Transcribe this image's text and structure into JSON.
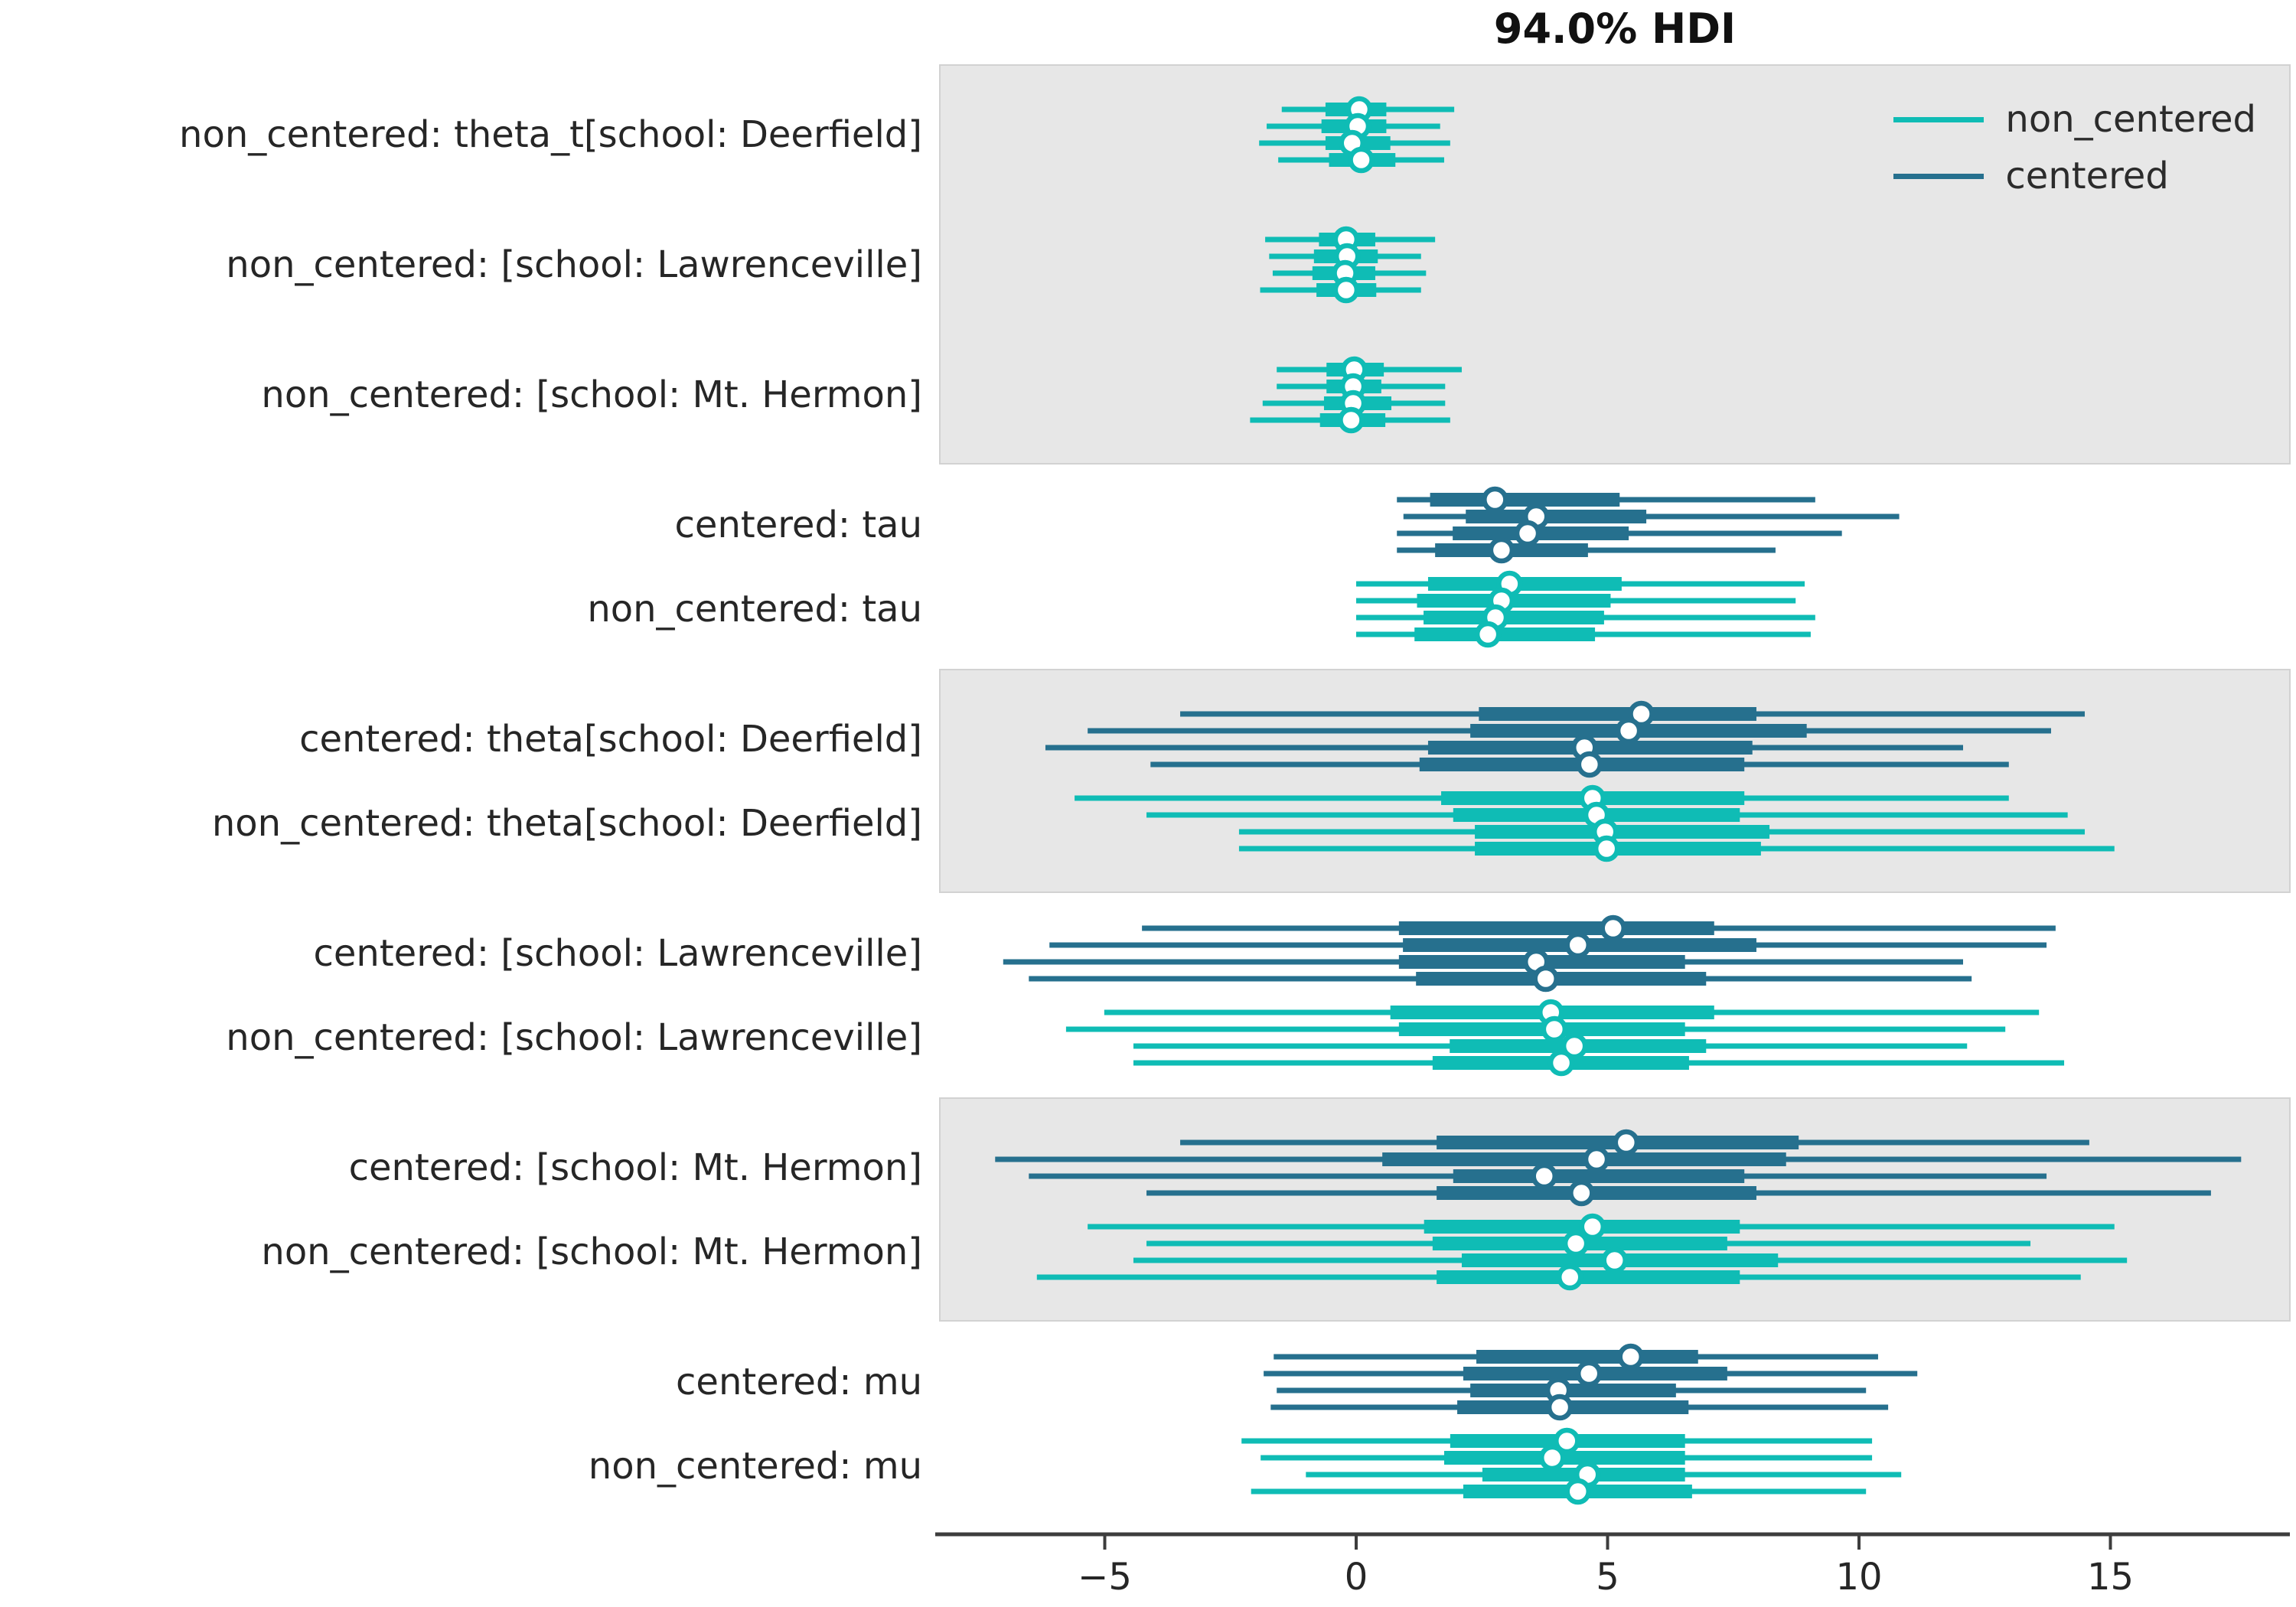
{
  "chart_data": {
    "type": "forest",
    "title": "94.0% HDI",
    "hdi_probability": "94.0%",
    "x_ticks": [
      -5,
      0,
      5,
      10,
      15
    ],
    "x_range": [
      -8.3,
      18.6
    ],
    "grid": false,
    "legend_position": "upper right",
    "legend": [
      {
        "label": "non_centered",
        "color": "#0fbcb5"
      },
      {
        "label": "centered",
        "color": "#26708e"
      }
    ],
    "colors": {
      "non_centered": "#0fbcb5",
      "centered": "#26708e",
      "band": "#e7e7e7",
      "band_edge": "#d2d2d2",
      "axis": "#3d3d3d",
      "text": "#262626"
    },
    "chain_value_columns": [
      "hdi_low",
      "quartile_low",
      "median",
      "quartile_high",
      "hdi_high"
    ],
    "rows": [
      {
        "label": "non_centered: theta_t[school: Deerfield]",
        "model": "non_centered",
        "shaded": true,
        "chains": [
          [
            -1.48,
            -0.61,
            0.06,
            0.6,
            1.95
          ],
          [
            -1.78,
            -0.69,
            0.03,
            0.6,
            1.67
          ],
          [
            -1.93,
            -0.61,
            -0.08,
            0.68,
            1.87
          ],
          [
            -1.55,
            -0.54,
            0.1,
            0.78,
            1.75
          ]
        ]
      },
      {
        "label": "non_centered: [school: Lawrenceville]",
        "model": "non_centered",
        "shaded": true,
        "chains": [
          [
            -1.81,
            -0.74,
            -0.2,
            0.38,
            1.57
          ],
          [
            -1.73,
            -0.84,
            -0.18,
            0.43,
            1.29
          ],
          [
            -1.66,
            -0.87,
            -0.22,
            0.38,
            1.39
          ],
          [
            -1.91,
            -0.79,
            -0.2,
            0.4,
            1.29
          ]
        ]
      },
      {
        "label": "non_centered: [school: Mt. Hermon]",
        "model": "non_centered",
        "shaded": true,
        "chains": [
          [
            -1.58,
            -0.59,
            -0.04,
            0.55,
            2.1
          ],
          [
            -1.58,
            -0.59,
            -0.06,
            0.5,
            1.77
          ],
          [
            -1.86,
            -0.64,
            -0.06,
            0.7,
            1.77
          ],
          [
            -2.11,
            -0.72,
            -0.1,
            0.58,
            1.87
          ]
        ]
      },
      {
        "label": "centered: tau",
        "model": "centered",
        "shaded": false,
        "chains": [
          [
            0.81,
            1.47,
            2.76,
            5.24,
            9.13
          ],
          [
            0.94,
            2.18,
            3.58,
            5.77,
            10.8
          ],
          [
            0.81,
            1.92,
            3.41,
            5.42,
            9.66
          ],
          [
            0.81,
            1.57,
            2.89,
            4.61,
            8.34
          ]
        ]
      },
      {
        "label": "non_centered: tau",
        "model": "non_centered",
        "shaded": false,
        "chains": [
          [
            0.0,
            1.43,
            3.05,
            5.28,
            8.92
          ],
          [
            0.0,
            1.21,
            2.89,
            5.06,
            8.74
          ],
          [
            0.0,
            1.34,
            2.77,
            4.93,
            9.13
          ],
          [
            0.0,
            1.16,
            2.62,
            4.75,
            9.04
          ]
        ]
      },
      {
        "label": "centered: theta[school: Deerfield]",
        "model": "centered",
        "shaded": true,
        "chains": [
          [
            -3.5,
            2.44,
            5.67,
            7.96,
            14.49
          ],
          [
            -5.34,
            2.27,
            5.42,
            8.96,
            13.82
          ],
          [
            -6.18,
            1.43,
            4.54,
            7.88,
            12.07
          ],
          [
            -4.09,
            1.26,
            4.64,
            7.72,
            12.98
          ]
        ]
      },
      {
        "label": "non_centered: theta[school: Deerfield]",
        "model": "non_centered",
        "shaded": true,
        "chains": [
          [
            -5.6,
            1.69,
            4.7,
            7.72,
            12.98
          ],
          [
            -4.17,
            1.93,
            4.78,
            7.63,
            14.15
          ],
          [
            -2.33,
            2.36,
            4.95,
            8.22,
            14.49
          ],
          [
            -2.33,
            2.36,
            4.98,
            8.05,
            15.08
          ]
        ]
      },
      {
        "label": "centered: [school: Lawrenceville]",
        "model": "centered",
        "shaded": false,
        "chains": [
          [
            -4.26,
            0.85,
            5.11,
            7.12,
            13.91
          ],
          [
            -6.1,
            0.93,
            4.41,
            7.96,
            13.73
          ],
          [
            -7.02,
            0.85,
            3.58,
            6.54,
            12.07
          ],
          [
            -6.51,
            1.19,
            3.77,
            6.96,
            12.24
          ]
        ]
      },
      {
        "label": "non_centered: [school: Lawrenceville]",
        "model": "non_centered",
        "shaded": false,
        "chains": [
          [
            -5.01,
            0.68,
            3.87,
            7.12,
            13.58
          ],
          [
            -5.77,
            0.85,
            3.94,
            6.54,
            12.91
          ],
          [
            -4.43,
            1.86,
            4.34,
            6.96,
            12.15
          ],
          [
            -4.43,
            1.52,
            4.08,
            6.62,
            14.08
          ]
        ]
      },
      {
        "label": "centered: [school: Mt. Hermon]",
        "model": "centered",
        "shaded": true,
        "chains": [
          [
            -3.5,
            1.6,
            5.37,
            8.8,
            14.58
          ],
          [
            -7.18,
            0.52,
            4.78,
            8.55,
            17.6
          ],
          [
            -6.51,
            1.93,
            3.74,
            7.72,
            13.73
          ],
          [
            -4.17,
            1.6,
            4.48,
            7.96,
            17.0
          ]
        ]
      },
      {
        "label": "non_centered: [school: Mt. Hermon]",
        "model": "non_centered",
        "shaded": true,
        "chains": [
          [
            -5.34,
            1.35,
            4.7,
            7.63,
            15.08
          ],
          [
            -4.17,
            1.52,
            4.37,
            7.38,
            13.41
          ],
          [
            -4.43,
            2.1,
            5.14,
            8.39,
            15.33
          ],
          [
            -6.35,
            1.6,
            4.25,
            7.63,
            14.41
          ]
        ]
      },
      {
        "label": "centered: mu",
        "model": "centered",
        "shaded": false,
        "chains": [
          [
            -1.64,
            2.39,
            5.46,
            6.8,
            10.38
          ],
          [
            -1.84,
            2.13,
            4.63,
            7.38,
            11.16
          ],
          [
            -1.58,
            2.27,
            4.02,
            6.36,
            10.14
          ],
          [
            -1.7,
            2.01,
            4.05,
            6.61,
            10.58
          ]
        ]
      },
      {
        "label": "non_centered: mu",
        "model": "non_centered",
        "shaded": false,
        "chains": [
          [
            -2.28,
            1.87,
            4.19,
            6.54,
            10.26
          ],
          [
            -1.9,
            1.75,
            3.9,
            6.54,
            10.26
          ],
          [
            -1.0,
            2.51,
            4.6,
            6.54,
            10.84
          ],
          [
            -2.09,
            2.13,
            4.41,
            6.68,
            10.14
          ]
        ]
      }
    ]
  }
}
